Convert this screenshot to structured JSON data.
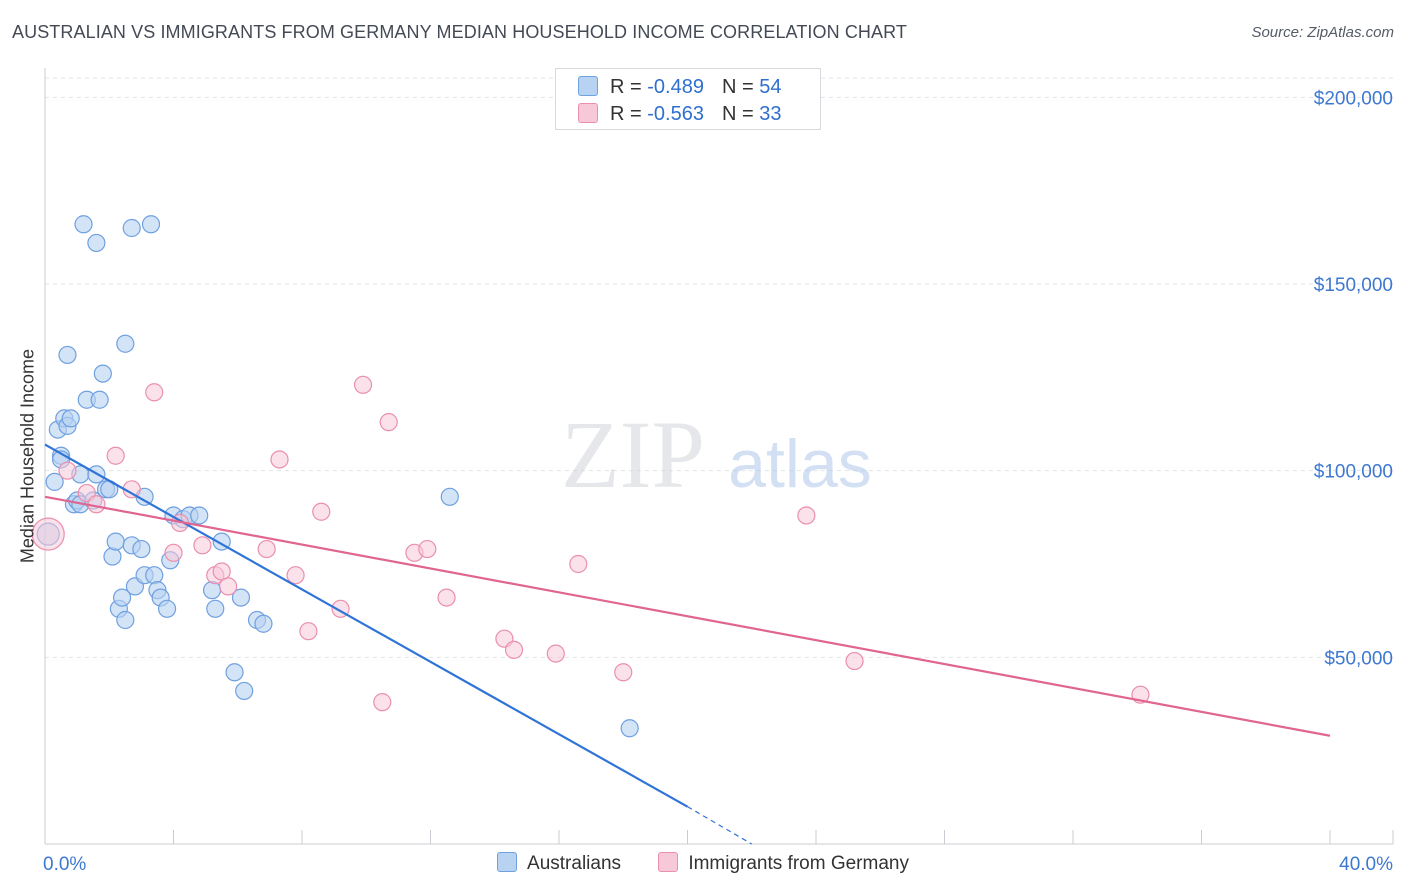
{
  "title": "AUSTRALIAN VS IMMIGRANTS FROM GERMANY MEDIAN HOUSEHOLD INCOME CORRELATION CHART",
  "source": "Source: ZipAtlas.com",
  "watermark": {
    "zip": "ZIP",
    "atlas": "atlas"
  },
  "legend_top": [
    {
      "r_label": "R = ",
      "r_value": "-0.489",
      "n_label": "N = ",
      "n_value": "54"
    },
    {
      "r_label": "R = ",
      "r_value": "-0.563",
      "n_label": "N = ",
      "n_value": "33"
    }
  ],
  "chart_data": {
    "type": "scatter",
    "title": "AUSTRALIAN VS IMMIGRANTS FROM GERMANY MEDIAN HOUSEHOLD INCOME CORRELATION CHART",
    "xlabel": "",
    "ylabel": "Median Household Income",
    "xlim": [
      0,
      40
    ],
    "ylim": [
      0,
      210000
    ],
    "x_tick_labels": [
      "0.0%",
      "40.0%"
    ],
    "y_ticks": [
      50000,
      100000,
      150000,
      200000
    ],
    "y_tick_labels": [
      "$50,000",
      "$100,000",
      "$150,000",
      "$200,000"
    ],
    "grid": true,
    "legend_position": "top-center",
    "colors": {
      "australians": "#6fa0e0",
      "australians_fill": "#b8d2f2",
      "australians_line": "#2f74d6",
      "germany": "#ea8fad",
      "germany_fill": "#f7c9d8",
      "germany_line": "#e06591",
      "grid": "#e1e4e8",
      "tick_text": "#3d78d0"
    },
    "series": [
      {
        "name": "Australians",
        "r": -0.489,
        "n": 54,
        "trend": {
          "x0": 0,
          "y0": 107000,
          "x1": 20,
          "y1": 10000,
          "dash_x1": 22,
          "dash_y1": 0
        },
        "points": [
          [
            0.1,
            83000
          ],
          [
            0.3,
            97000
          ],
          [
            0.4,
            111000
          ],
          [
            0.5,
            104000
          ],
          [
            0.5,
            103000
          ],
          [
            0.6,
            114000
          ],
          [
            0.7,
            112000
          ],
          [
            0.7,
            131000
          ],
          [
            0.8,
            114000
          ],
          [
            0.9,
            91000
          ],
          [
            1.0,
            92000
          ],
          [
            1.1,
            99000
          ],
          [
            1.1,
            91000
          ],
          [
            1.2,
            166000
          ],
          [
            1.3,
            119000
          ],
          [
            1.5,
            92000
          ],
          [
            1.6,
            99000
          ],
          [
            1.6,
            161000
          ],
          [
            1.7,
            119000
          ],
          [
            1.8,
            126000
          ],
          [
            1.9,
            95000
          ],
          [
            2.0,
            95000
          ],
          [
            2.1,
            77000
          ],
          [
            2.2,
            81000
          ],
          [
            2.3,
            63000
          ],
          [
            2.4,
            66000
          ],
          [
            2.5,
            134000
          ],
          [
            2.5,
            60000
          ],
          [
            2.7,
            165000
          ],
          [
            2.7,
            80000
          ],
          [
            2.8,
            69000
          ],
          [
            3.0,
            79000
          ],
          [
            3.1,
            72000
          ],
          [
            3.1,
            93000
          ],
          [
            3.3,
            166000
          ],
          [
            3.4,
            72000
          ],
          [
            3.5,
            68000
          ],
          [
            3.6,
            66000
          ],
          [
            3.8,
            63000
          ],
          [
            3.9,
            76000
          ],
          [
            4.0,
            88000
          ],
          [
            4.3,
            87000
          ],
          [
            4.5,
            88000
          ],
          [
            4.8,
            88000
          ],
          [
            5.2,
            68000
          ],
          [
            5.3,
            63000
          ],
          [
            5.5,
            81000
          ],
          [
            5.9,
            46000
          ],
          [
            6.1,
            66000
          ],
          [
            6.2,
            41000
          ],
          [
            6.6,
            60000
          ],
          [
            6.8,
            59000
          ],
          [
            12.6,
            93000
          ],
          [
            18.2,
            31000
          ]
        ]
      },
      {
        "name": "Immigrants from Germany",
        "r": -0.563,
        "n": 33,
        "trend": {
          "x0": 0,
          "y0": 93000,
          "x1": 40,
          "y1": 29000
        },
        "points": [
          [
            0.1,
            83000
          ],
          [
            0.7,
            100000
          ],
          [
            1.3,
            94000
          ],
          [
            1.6,
            91000
          ],
          [
            2.2,
            104000
          ],
          [
            2.7,
            95000
          ],
          [
            3.4,
            121000
          ],
          [
            4.0,
            78000
          ],
          [
            4.2,
            86000
          ],
          [
            4.9,
            80000
          ],
          [
            5.3,
            72000
          ],
          [
            5.5,
            73000
          ],
          [
            5.7,
            69000
          ],
          [
            6.9,
            79000
          ],
          [
            7.3,
            103000
          ],
          [
            7.8,
            72000
          ],
          [
            8.2,
            57000
          ],
          [
            8.6,
            89000
          ],
          [
            9.2,
            63000
          ],
          [
            9.9,
            123000
          ],
          [
            10.5,
            38000
          ],
          [
            10.7,
            113000
          ],
          [
            11.5,
            78000
          ],
          [
            11.9,
            79000
          ],
          [
            12.5,
            66000
          ],
          [
            14.3,
            55000
          ],
          [
            14.6,
            52000
          ],
          [
            15.9,
            51000
          ],
          [
            16.6,
            75000
          ],
          [
            18.0,
            46000
          ],
          [
            23.7,
            88000
          ],
          [
            25.2,
            49000
          ],
          [
            34.1,
            40000
          ]
        ]
      }
    ]
  },
  "legend_bottom": [
    {
      "label": "Australians"
    },
    {
      "label": "Immigrants from Germany"
    }
  ]
}
